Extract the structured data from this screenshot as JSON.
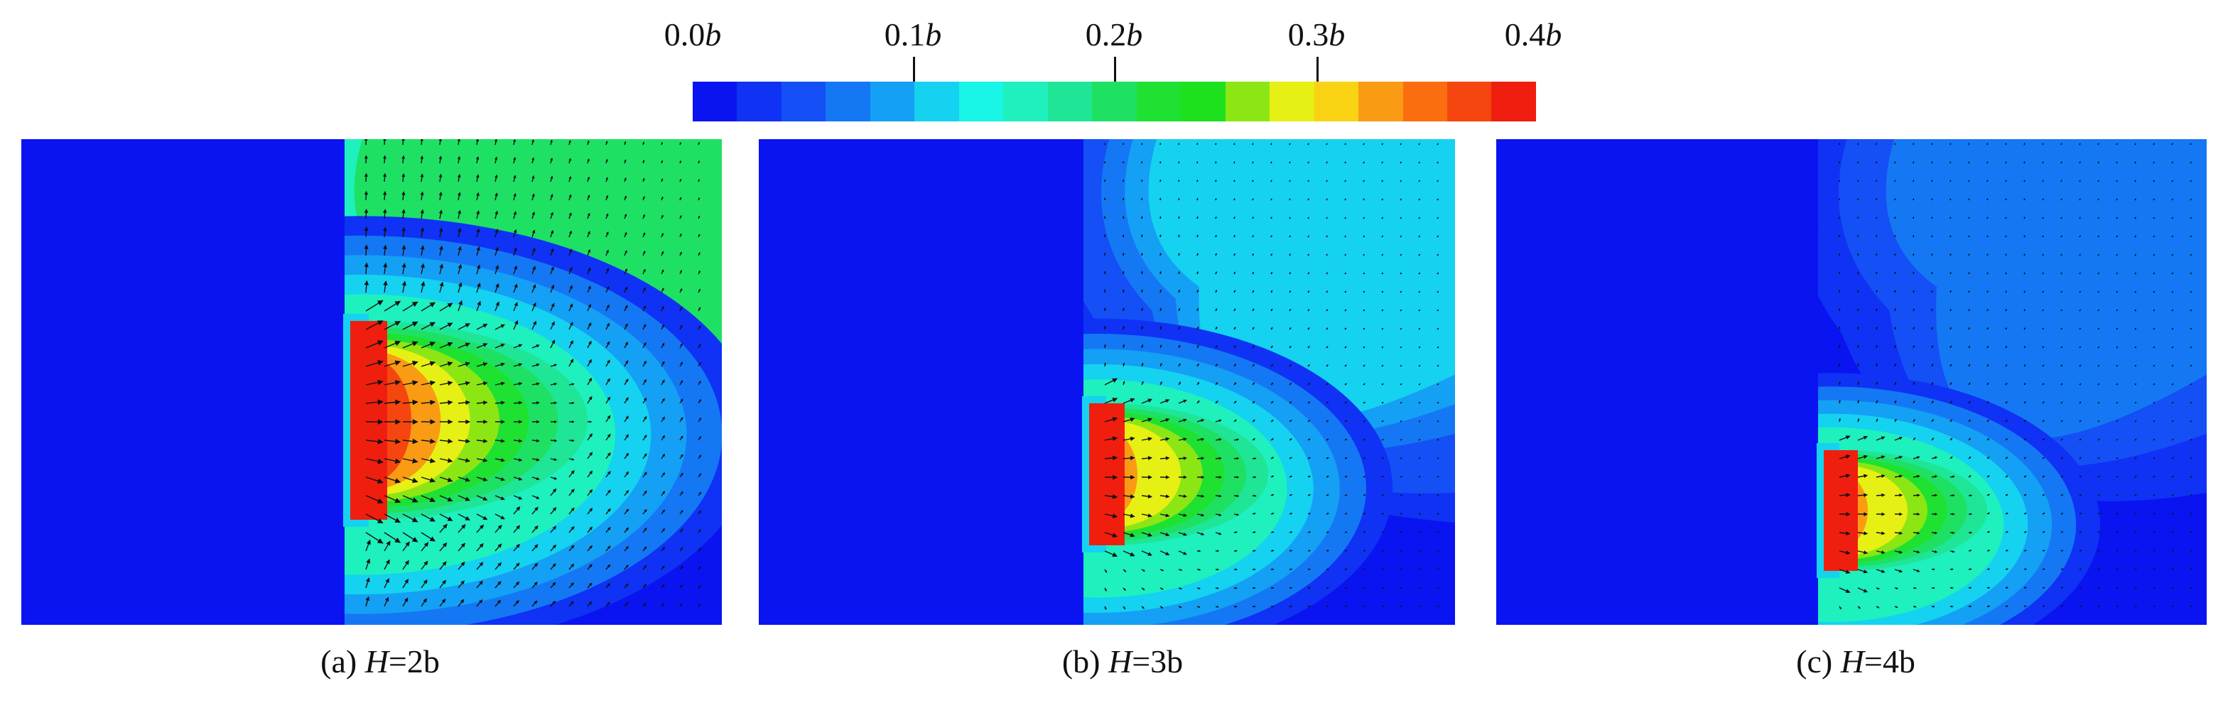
{
  "colorbar": {
    "ticks": [
      {
        "num": "0.0",
        "unit": "b",
        "value": 0.0
      },
      {
        "num": "0.1",
        "unit": "b",
        "value": 0.1
      },
      {
        "num": "0.2",
        "unit": "b",
        "value": 0.2
      },
      {
        "num": "0.3",
        "unit": "b",
        "value": 0.3
      },
      {
        "num": "0.4",
        "unit": "b",
        "value": 0.4
      }
    ],
    "colors": [
      "#0a14f0",
      "#0f32f5",
      "#1450f5",
      "#1478f5",
      "#14a0f5",
      "#14d2f0",
      "#19f5e6",
      "#1ef0be",
      "#1ee696",
      "#1ee164",
      "#1ee132",
      "#1ee11e",
      "#8ce614",
      "#e6f014",
      "#fad214",
      "#fa9b14",
      "#fa6e0f",
      "#f5460f",
      "#f01e0f"
    ]
  },
  "chart_data": [
    {
      "type": "heatmap",
      "panel_label": "(a)",
      "param_symbol": "H",
      "param_value": "2b",
      "color_range": [
        0.0,
        0.4
      ],
      "color_unit": "b",
      "zones": [
        {
          "region": "source column",
          "level": 0.4
        },
        {
          "region": "bulb right of column",
          "level": 0.33
        },
        {
          "region": "upper right surface",
          "level": 0.2
        },
        {
          "region": "far field left",
          "level": 0.0
        }
      ],
      "vectors": true
    },
    {
      "type": "heatmap",
      "panel_label": "(b)",
      "param_symbol": "H",
      "param_value": "3b",
      "color_range": [
        0.0,
        0.4
      ],
      "color_unit": "b",
      "zones": [
        {
          "region": "source column",
          "level": 0.4
        },
        {
          "region": "bulb right of column",
          "level": 0.3
        },
        {
          "region": "upper right surface",
          "level": 0.1
        },
        {
          "region": "far field left",
          "level": 0.0
        }
      ],
      "vectors": true
    },
    {
      "type": "heatmap",
      "panel_label": "(c)",
      "param_symbol": "H",
      "param_value": "4b",
      "color_range": [
        0.0,
        0.4
      ],
      "color_unit": "b",
      "zones": [
        {
          "region": "source column",
          "level": 0.4
        },
        {
          "region": "bulb right of column",
          "level": 0.3
        },
        {
          "region": "upper right surface",
          "level": 0.06
        },
        {
          "region": "far field left",
          "level": 0.0
        }
      ],
      "vectors": true
    }
  ]
}
